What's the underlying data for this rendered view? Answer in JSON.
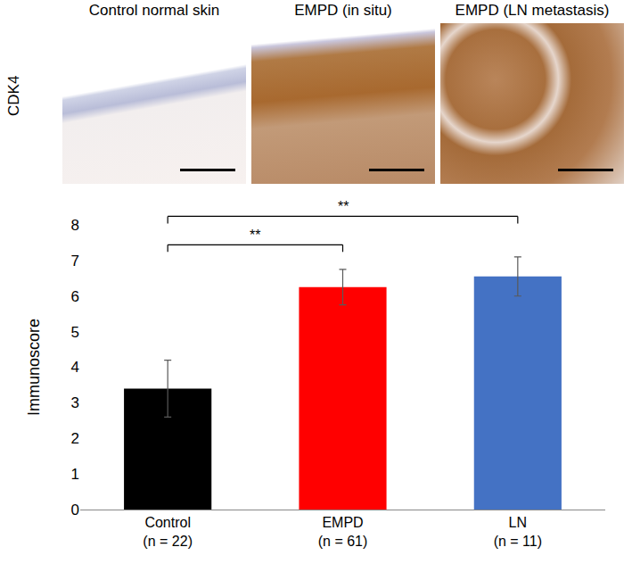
{
  "image_panels": {
    "row_label": "CDK4",
    "titles": [
      "Control normal skin",
      "EMPD (in situ)",
      "EMPD (LN metastasis)"
    ]
  },
  "chart_data": {
    "type": "bar",
    "categories": [
      "Control\n(n = 22)",
      "EMPD\n(n = 61)",
      "LN\n(n = 11)"
    ],
    "values": [
      3.4,
      6.25,
      6.55
    ],
    "errors": [
      0.8,
      0.5,
      0.55
    ],
    "colors": [
      "#000000",
      "#ff0000",
      "#4472c4"
    ],
    "y_label": "Immunoscore",
    "ylim": [
      0,
      8
    ],
    "yticks": [
      0,
      1,
      2,
      3,
      4,
      5,
      6,
      7,
      8
    ],
    "grid": false,
    "comparisons": [
      {
        "from": "Control\n(n = 22)",
        "to": "EMPD\n(n = 61)",
        "label": "**"
      },
      {
        "from": "Control\n(n = 22)",
        "to": "LN\n(n = 11)",
        "label": "**"
      }
    ]
  }
}
